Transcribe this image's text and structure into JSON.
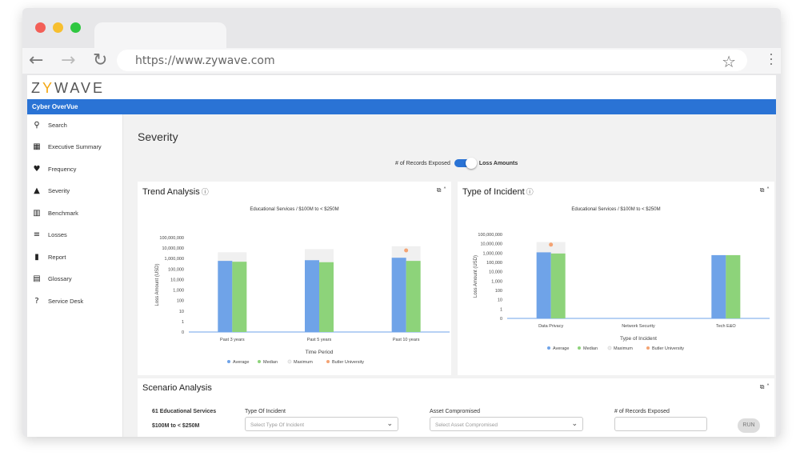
{
  "browser": {
    "url": "https://www.zywave.com"
  },
  "app": {
    "logo": "ZYWAVE",
    "brand_bar": "Cyber OverVue"
  },
  "sidebar": {
    "items": [
      {
        "label": "Search",
        "icon": "search-icon"
      },
      {
        "label": "Executive Summary",
        "icon": "grid-icon"
      },
      {
        "label": "Frequency",
        "icon": "heartbeat-icon"
      },
      {
        "label": "Severity",
        "icon": "cone-icon"
      },
      {
        "label": "Benchmark",
        "icon": "bar-chart-icon"
      },
      {
        "label": "Losses",
        "icon": "list-icon"
      },
      {
        "label": "Report",
        "icon": "report-icon"
      },
      {
        "label": "Glossary",
        "icon": "book-icon"
      },
      {
        "label": "Service Desk",
        "icon": "help-icon"
      }
    ]
  },
  "main": {
    "title": "Severity",
    "toggle": {
      "left_label": "# of Records Exposed",
      "right_label": "Loss Amounts",
      "selected": "Loss Amounts"
    }
  },
  "trend_card": {
    "title": "Trend Analysis",
    "subtitle": "Educational Services / $100M to < $250M",
    "ylabel": "Loss Amount (USD)",
    "xlabel": "Time Period"
  },
  "incident_card": {
    "title": "Type of Incident",
    "subtitle": "Educational Services / $100M to < $250M",
    "ylabel": "Loss Amount (USD)",
    "xlabel": "Type of Incident"
  },
  "scenario": {
    "title": "Scenario Analysis",
    "count_label": "61 Educational Services",
    "revenue_label": "$100M to < $250M",
    "type_label": "Type Of Incident",
    "type_placeholder": "Select Type Of Incident",
    "asset_label": "Asset Compromised",
    "asset_placeholder": "Select Asset Compromised",
    "records_label": "# of Records Exposed",
    "run_label": "RUN"
  },
  "colors": {
    "average": "#6fa3e8",
    "median": "#8dd37a",
    "maximum": "#f0f0f0",
    "butler": "#f4a373",
    "brand": "#2a73d5"
  },
  "chart_data": [
    {
      "type": "bar",
      "title": "Educational Services / $100M to < $250M",
      "xlabel": "Time Period",
      "ylabel": "Loss Amount (USD)",
      "yscale": "log",
      "yticks": [
        "0",
        "1",
        "10",
        "100",
        "1,000",
        "10,000",
        "100,000",
        "1,000,000",
        "10,000,000",
        "100,000,000"
      ],
      "categories": [
        "Past 3 years",
        "Past 5 years",
        "Past 10 years"
      ],
      "series": [
        {
          "name": "Average",
          "values": [
            600000,
            700000,
            1200000
          ]
        },
        {
          "name": "Median",
          "values": [
            500000,
            450000,
            600000
          ]
        },
        {
          "name": "Maximum",
          "values": [
            4000000,
            8000000,
            15000000
          ]
        },
        {
          "name": "Butler University",
          "values": [
            null,
            null,
            6000000
          ]
        }
      ],
      "legend": "bottom"
    },
    {
      "type": "bar",
      "title": "Educational Services / $100M to < $250M",
      "xlabel": "Type of Incident",
      "ylabel": "Loss Amount (USD)",
      "yscale": "log",
      "yticks": [
        "0",
        "1",
        "10",
        "100",
        "1,000",
        "10,000",
        "100,000",
        "1,000,000",
        "10,000,000",
        "100,000,000"
      ],
      "categories": [
        "Data Privacy",
        "Network Security",
        "Tech E&O"
      ],
      "series": [
        {
          "name": "Average",
          "values": [
            1200000,
            null,
            600000
          ]
        },
        {
          "name": "Median",
          "values": [
            900000,
            null,
            600000
          ]
        },
        {
          "name": "Maximum",
          "values": [
            15000000,
            null,
            600000
          ]
        },
        {
          "name": "Butler University",
          "values": [
            8000000,
            null,
            null
          ]
        }
      ],
      "legend": "bottom"
    }
  ]
}
